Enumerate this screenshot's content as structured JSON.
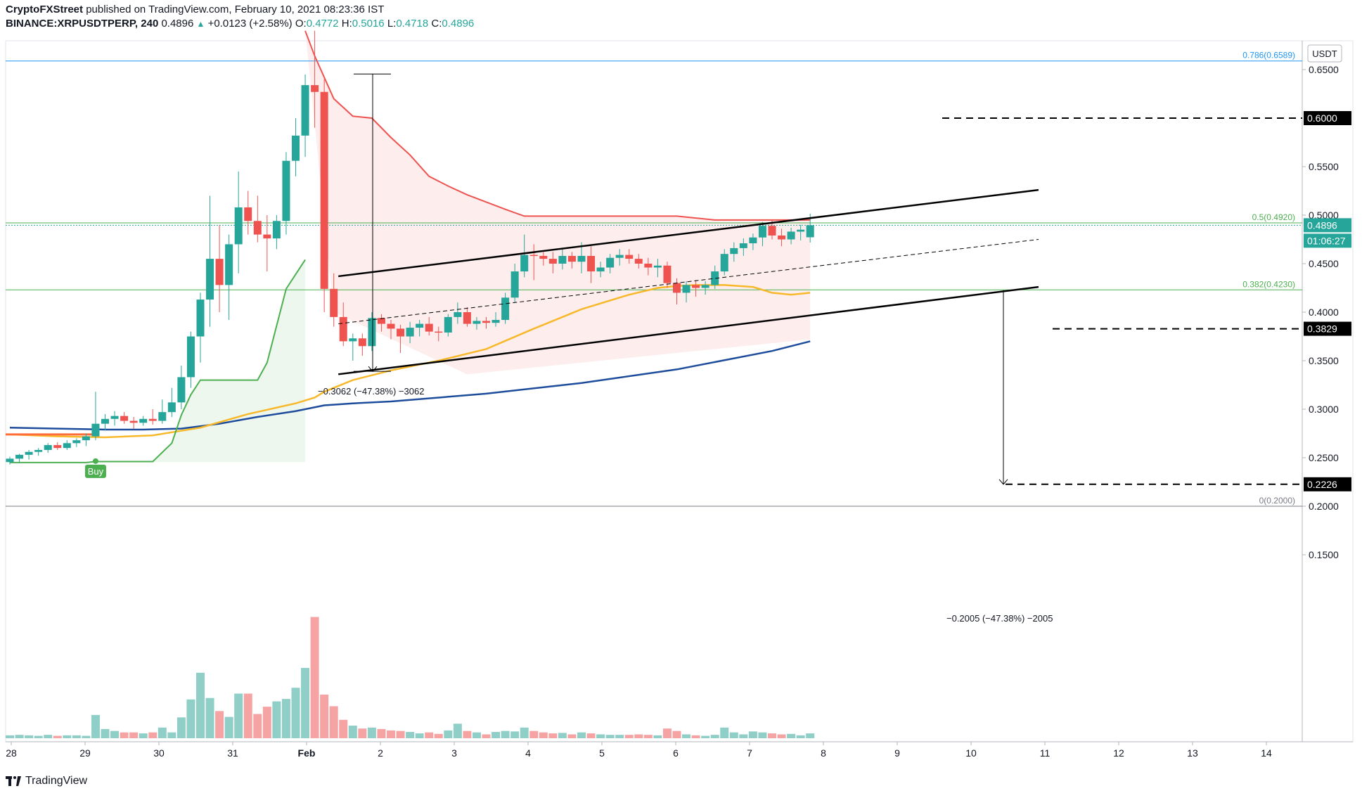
{
  "header": {
    "line1_author": "CryptoFXStreet",
    "line1_rest": "published on TradingView.com, February 10, 2021 08:23:36 IST",
    "symbol": "BINANCE:XRPUSDTPERP, 240",
    "last": "0.4896",
    "change": "+0.0123 (+2.58%)",
    "o_label": "O:",
    "o": "0.4772",
    "h_label": "H:",
    "h": "0.5016",
    "l_label": "L:",
    "l": "0.4718",
    "c_label": "C:",
    "c": "0.4896"
  },
  "footer": {
    "brand": "TradingView",
    "logo_icon": "tradingview-logo-icon"
  },
  "colors": {
    "up": "#26a69a",
    "down": "#ef5350",
    "vol_up": "#8fcfc8",
    "vol_down": "#f5a3a3",
    "ema_orange": "#f7b92a",
    "ema_blue": "#1e4c9c",
    "st_green": "#4caf50",
    "st_red": "#ef5350",
    "fib_blue": "#2196f3",
    "fib_green": "#4caf50",
    "fib_gray": "#787b86"
  },
  "chart_data": {
    "type": "candlestick",
    "currency": "USDT",
    "y_ticks": [
      "0.6500",
      "0.5500",
      "0.5000",
      "0.4500",
      "0.4000",
      "0.3500",
      "0.3000",
      "0.2500",
      "0.2000",
      "0.1500"
    ],
    "x_ticks": [
      "28",
      "29",
      "30",
      "31",
      "Feb",
      "2",
      "3",
      "4",
      "5",
      "6",
      "7",
      "8",
      "9",
      "10",
      "11",
      "12",
      "13",
      "14"
    ],
    "price_labels": {
      "last_price": "0.4896",
      "countdown": "01:06:27",
      "level_0600": "0.6000",
      "level_03829": "0.3829",
      "level_02226": "0.2226"
    },
    "fib_levels": [
      {
        "label": "0.786(0.6589)",
        "value": 0.6589
      },
      {
        "label": "0.5(0.4920)",
        "value": 0.492
      },
      {
        "label": "0.382(0.4230)",
        "value": 0.423
      },
      {
        "label": "0(0.2000)",
        "value": 0.2
      }
    ],
    "measure_labels": [
      "−0.3062 (−47.38%) −3062",
      "−0.2005 (−47.38%) −2005"
    ],
    "signal_label": "Buy",
    "candles": [
      [
        0.2455,
        0.251,
        0.243,
        0.249,
        0.6
      ],
      [
        0.249,
        0.254,
        0.245,
        0.253,
        0.7
      ],
      [
        0.253,
        0.258,
        0.248,
        0.256,
        0.6
      ],
      [
        0.256,
        0.26,
        0.252,
        0.258,
        0.5
      ],
      [
        0.258,
        0.265,
        0.255,
        0.263,
        0.7
      ],
      [
        0.263,
        0.266,
        0.258,
        0.26,
        0.5
      ],
      [
        0.26,
        0.268,
        0.258,
        0.265,
        0.6
      ],
      [
        0.265,
        0.27,
        0.261,
        0.268,
        0.6
      ],
      [
        0.268,
        0.275,
        0.262,
        0.272,
        0.5
      ],
      [
        0.272,
        0.318,
        0.268,
        0.285,
        4.8
      ],
      [
        0.285,
        0.295,
        0.278,
        0.29,
        1.9
      ],
      [
        0.29,
        0.298,
        0.283,
        0.293,
        1.5
      ],
      [
        0.293,
        0.297,
        0.285,
        0.288,
        1.2
      ],
      [
        0.288,
        0.292,
        0.28,
        0.286,
        1.2
      ],
      [
        0.286,
        0.293,
        0.283,
        0.29,
        1.0
      ],
      [
        0.29,
        0.3,
        0.284,
        0.288,
        1.2
      ],
      [
        0.288,
        0.31,
        0.285,
        0.297,
        2.2
      ],
      [
        0.297,
        0.322,
        0.292,
        0.307,
        1.2
      ],
      [
        0.307,
        0.345,
        0.3,
        0.333,
        4.3
      ],
      [
        0.333,
        0.38,
        0.322,
        0.375,
        8.0
      ],
      [
        0.375,
        0.42,
        0.348,
        0.413,
        13.5
      ],
      [
        0.413,
        0.52,
        0.385,
        0.455,
        8.3
      ],
      [
        0.455,
        0.49,
        0.4,
        0.428,
        5.6
      ],
      [
        0.428,
        0.48,
        0.392,
        0.47,
        4.4
      ],
      [
        0.47,
        0.545,
        0.44,
        0.508,
        9.2
      ],
      [
        0.508,
        0.525,
        0.48,
        0.494,
        9.2
      ],
      [
        0.494,
        0.52,
        0.472,
        0.48,
        5.0
      ],
      [
        0.48,
        0.5,
        0.442,
        0.476,
        6.5
      ],
      [
        0.476,
        0.5,
        0.465,
        0.494,
        7.6
      ],
      [
        0.494,
        0.565,
        0.48,
        0.556,
        8.1
      ],
      [
        0.556,
        0.6,
        0.54,
        0.582,
        10.4
      ],
      [
        0.582,
        0.645,
        0.56,
        0.634,
        14.5
      ],
      [
        0.634,
        0.69,
        0.59,
        0.627,
        25.0
      ],
      [
        0.627,
        0.64,
        0.4,
        0.424,
        9.0
      ],
      [
        0.424,
        0.44,
        0.385,
        0.395,
        6.6
      ],
      [
        0.395,
        0.41,
        0.365,
        0.37,
        3.8
      ],
      [
        0.37,
        0.378,
        0.35,
        0.373,
        2.6
      ],
      [
        0.373,
        0.378,
        0.355,
        0.365,
        2.0
      ],
      [
        0.365,
        0.4,
        0.36,
        0.394,
        2.2
      ],
      [
        0.394,
        0.398,
        0.38,
        0.388,
        1.9
      ],
      [
        0.388,
        0.392,
        0.372,
        0.383,
        1.6
      ],
      [
        0.383,
        0.387,
        0.358,
        0.375,
        1.5
      ],
      [
        0.375,
        0.39,
        0.368,
        0.384,
        1.3
      ],
      [
        0.384,
        0.392,
        0.375,
        0.388,
        1.0
      ],
      [
        0.388,
        0.395,
        0.376,
        0.38,
        1.2
      ],
      [
        0.38,
        0.385,
        0.37,
        0.379,
        0.9
      ],
      [
        0.379,
        0.398,
        0.375,
        0.395,
        1.6
      ],
      [
        0.395,
        0.41,
        0.388,
        0.4,
        3.0
      ],
      [
        0.4,
        0.405,
        0.385,
        0.388,
        1.5
      ],
      [
        0.388,
        0.395,
        0.382,
        0.391,
        1.2
      ],
      [
        0.391,
        0.395,
        0.383,
        0.389,
        0.8
      ],
      [
        0.389,
        0.4,
        0.385,
        0.392,
        1.3
      ],
      [
        0.392,
        0.42,
        0.388,
        0.415,
        1.5
      ],
      [
        0.415,
        0.45,
        0.41,
        0.442,
        1.4
      ],
      [
        0.442,
        0.48,
        0.436,
        0.459,
        2.2
      ],
      [
        0.459,
        0.47,
        0.433,
        0.458,
        1.5
      ],
      [
        0.458,
        0.462,
        0.448,
        0.455,
        1.2
      ],
      [
        0.455,
        0.462,
        0.44,
        0.45,
        1.0
      ],
      [
        0.45,
        0.465,
        0.444,
        0.458,
        1.1
      ],
      [
        0.458,
        0.462,
        0.445,
        0.452,
        0.8
      ],
      [
        0.452,
        0.472,
        0.44,
        0.458,
        1.2
      ],
      [
        0.458,
        0.468,
        0.43,
        0.442,
        1.0
      ],
      [
        0.442,
        0.452,
        0.436,
        0.446,
        0.8
      ],
      [
        0.446,
        0.46,
        0.44,
        0.456,
        0.7
      ],
      [
        0.456,
        0.465,
        0.448,
        0.459,
        0.7
      ],
      [
        0.459,
        0.465,
        0.45,
        0.455,
        0.7
      ],
      [
        0.455,
        0.46,
        0.445,
        0.45,
        0.8
      ],
      [
        0.45,
        0.456,
        0.438,
        0.446,
        0.7
      ],
      [
        0.446,
        0.455,
        0.436,
        0.448,
        0.6
      ],
      [
        0.448,
        0.452,
        0.425,
        0.43,
        2.0
      ],
      [
        0.43,
        0.435,
        0.408,
        0.42,
        1.5
      ],
      [
        0.42,
        0.432,
        0.41,
        0.428,
        0.8
      ],
      [
        0.428,
        0.433,
        0.416,
        0.425,
        0.6
      ],
      [
        0.425,
        0.432,
        0.418,
        0.428,
        0.5
      ],
      [
        0.428,
        0.448,
        0.424,
        0.442,
        0.7
      ],
      [
        0.442,
        0.465,
        0.438,
        0.46,
        2.2
      ],
      [
        0.46,
        0.472,
        0.452,
        0.466,
        1.2
      ],
      [
        0.466,
        0.476,
        0.458,
        0.471,
        0.8
      ],
      [
        0.471,
        0.481,
        0.464,
        0.477,
        1.4
      ],
      [
        0.477,
        0.493,
        0.468,
        0.489,
        1.2
      ],
      [
        0.489,
        0.495,
        0.475,
        0.479,
        1.0
      ],
      [
        0.479,
        0.486,
        0.468,
        0.475,
        0.8
      ],
      [
        0.475,
        0.487,
        0.47,
        0.483,
        0.9
      ],
      [
        0.483,
        0.49,
        0.474,
        0.485,
        0.6
      ],
      [
        0.4772,
        0.5016,
        0.4718,
        0.4896,
        1.0
      ]
    ],
    "ema_fast": [
      [
        0,
        0.274
      ],
      [
        5,
        0.272
      ],
      [
        10,
        0.271
      ],
      [
        15,
        0.273
      ],
      [
        20,
        0.281
      ],
      [
        25,
        0.295
      ],
      [
        30,
        0.306
      ],
      [
        32,
        0.312
      ],
      [
        33,
        0.318
      ],
      [
        36,
        0.33
      ],
      [
        40,
        0.34
      ],
      [
        45,
        0.35
      ],
      [
        50,
        0.362
      ],
      [
        55,
        0.383
      ],
      [
        60,
        0.403
      ],
      [
        65,
        0.418
      ],
      [
        68,
        0.425
      ],
      [
        70,
        0.427
      ],
      [
        72,
        0.428
      ],
      [
        75,
        0.428
      ],
      [
        78,
        0.426
      ],
      [
        80,
        0.42
      ],
      [
        82,
        0.418
      ],
      [
        84,
        0.42
      ]
    ],
    "ema_slow": [
      [
        0,
        0.281
      ],
      [
        5,
        0.28
      ],
      [
        10,
        0.279
      ],
      [
        14,
        0.279
      ],
      [
        18,
        0.28
      ],
      [
        22,
        0.285
      ],
      [
        26,
        0.292
      ],
      [
        30,
        0.298
      ],
      [
        33,
        0.304
      ],
      [
        36,
        0.306
      ],
      [
        40,
        0.308
      ],
      [
        50,
        0.316
      ],
      [
        60,
        0.327
      ],
      [
        70,
        0.341
      ],
      [
        80,
        0.36
      ],
      [
        84,
        0.37
      ]
    ],
    "supertrend_green": [
      [
        0,
        0.245
      ],
      [
        8,
        0.245
      ],
      [
        9,
        0.246
      ],
      [
        15,
        0.246
      ],
      [
        17,
        0.265
      ],
      [
        18,
        0.294
      ],
      [
        19,
        0.315
      ],
      [
        20,
        0.33
      ],
      [
        26,
        0.33
      ],
      [
        27,
        0.348
      ],
      [
        29,
        0.424
      ],
      [
        31,
        0.454
      ]
    ],
    "supertrend_red": [
      [
        31,
        0.69
      ],
      [
        32,
        0.664
      ],
      [
        34,
        0.62
      ],
      [
        36,
        0.602
      ],
      [
        38,
        0.6
      ],
      [
        40,
        0.58
      ],
      [
        42,
        0.562
      ],
      [
        44,
        0.54
      ],
      [
        46,
        0.53
      ],
      [
        48,
        0.521
      ],
      [
        52,
        0.506
      ],
      [
        54,
        0.499
      ],
      [
        70,
        0.499
      ],
      [
        72,
        0.497
      ],
      [
        74,
        0.495
      ],
      [
        84,
        0.495
      ]
    ]
  }
}
